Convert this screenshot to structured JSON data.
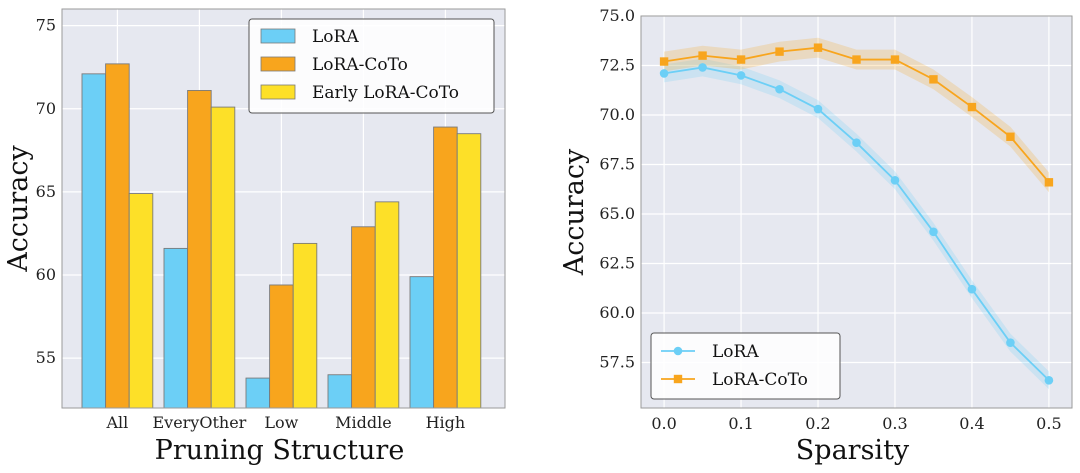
{
  "chart_data": [
    {
      "type": "bar",
      "xlabel": "Pruning Structure",
      "ylabel": "Accuracy",
      "categories": [
        "All",
        "EveryOther",
        "Low",
        "Middle",
        "High"
      ],
      "series": [
        {
          "name": "LoRA",
          "values": [
            72.1,
            61.6,
            53.8,
            54.0,
            59.9
          ],
          "color": "#6ccff6"
        },
        {
          "name": "LoRA-CoTo",
          "values": [
            72.7,
            71.1,
            59.4,
            62.9,
            68.9
          ],
          "color": "#f8a51d"
        },
        {
          "name": "Early LoRA-CoTo",
          "values": [
            64.9,
            70.1,
            61.9,
            64.4,
            68.5
          ],
          "color": "#fde028"
        }
      ],
      "ylim": [
        52,
        76
      ],
      "yticks": [
        "55",
        "60",
        "65",
        "70",
        "75"
      ],
      "grid": true,
      "legend": "top-right",
      "background": "#e6e8f0"
    },
    {
      "type": "line",
      "xlabel": "Sparsity",
      "ylabel": "Accuracy",
      "x": [
        0.0,
        0.05,
        0.1,
        0.15,
        0.2,
        0.25,
        0.3,
        0.35,
        0.4,
        0.45,
        0.5
      ],
      "series": [
        {
          "name": "LoRA",
          "values": [
            72.1,
            72.4,
            72.0,
            71.3,
            70.3,
            68.6,
            66.7,
            64.1,
            61.2,
            58.5,
            56.6
          ],
          "color": "#6ccff6",
          "marker": "circle"
        },
        {
          "name": "LoRA-CoTo",
          "values": [
            72.7,
            73.0,
            72.8,
            73.2,
            73.4,
            72.8,
            72.8,
            71.8,
            70.4,
            68.9,
            66.6
          ],
          "color": "#f8a51d",
          "marker": "square"
        }
      ],
      "xlim": [
        -0.03,
        0.53
      ],
      "ylim": [
        55.2,
        75.0
      ],
      "xticks": [
        "0.0",
        "0.1",
        "0.2",
        "0.3",
        "0.4",
        "0.5"
      ],
      "yticks": [
        "57.5",
        "60.0",
        "62.5",
        "65.0",
        "67.5",
        "70.0",
        "72.5",
        "75.0"
      ],
      "grid": true,
      "legend": "bottom-left",
      "background": "#e6e8f0"
    }
  ]
}
